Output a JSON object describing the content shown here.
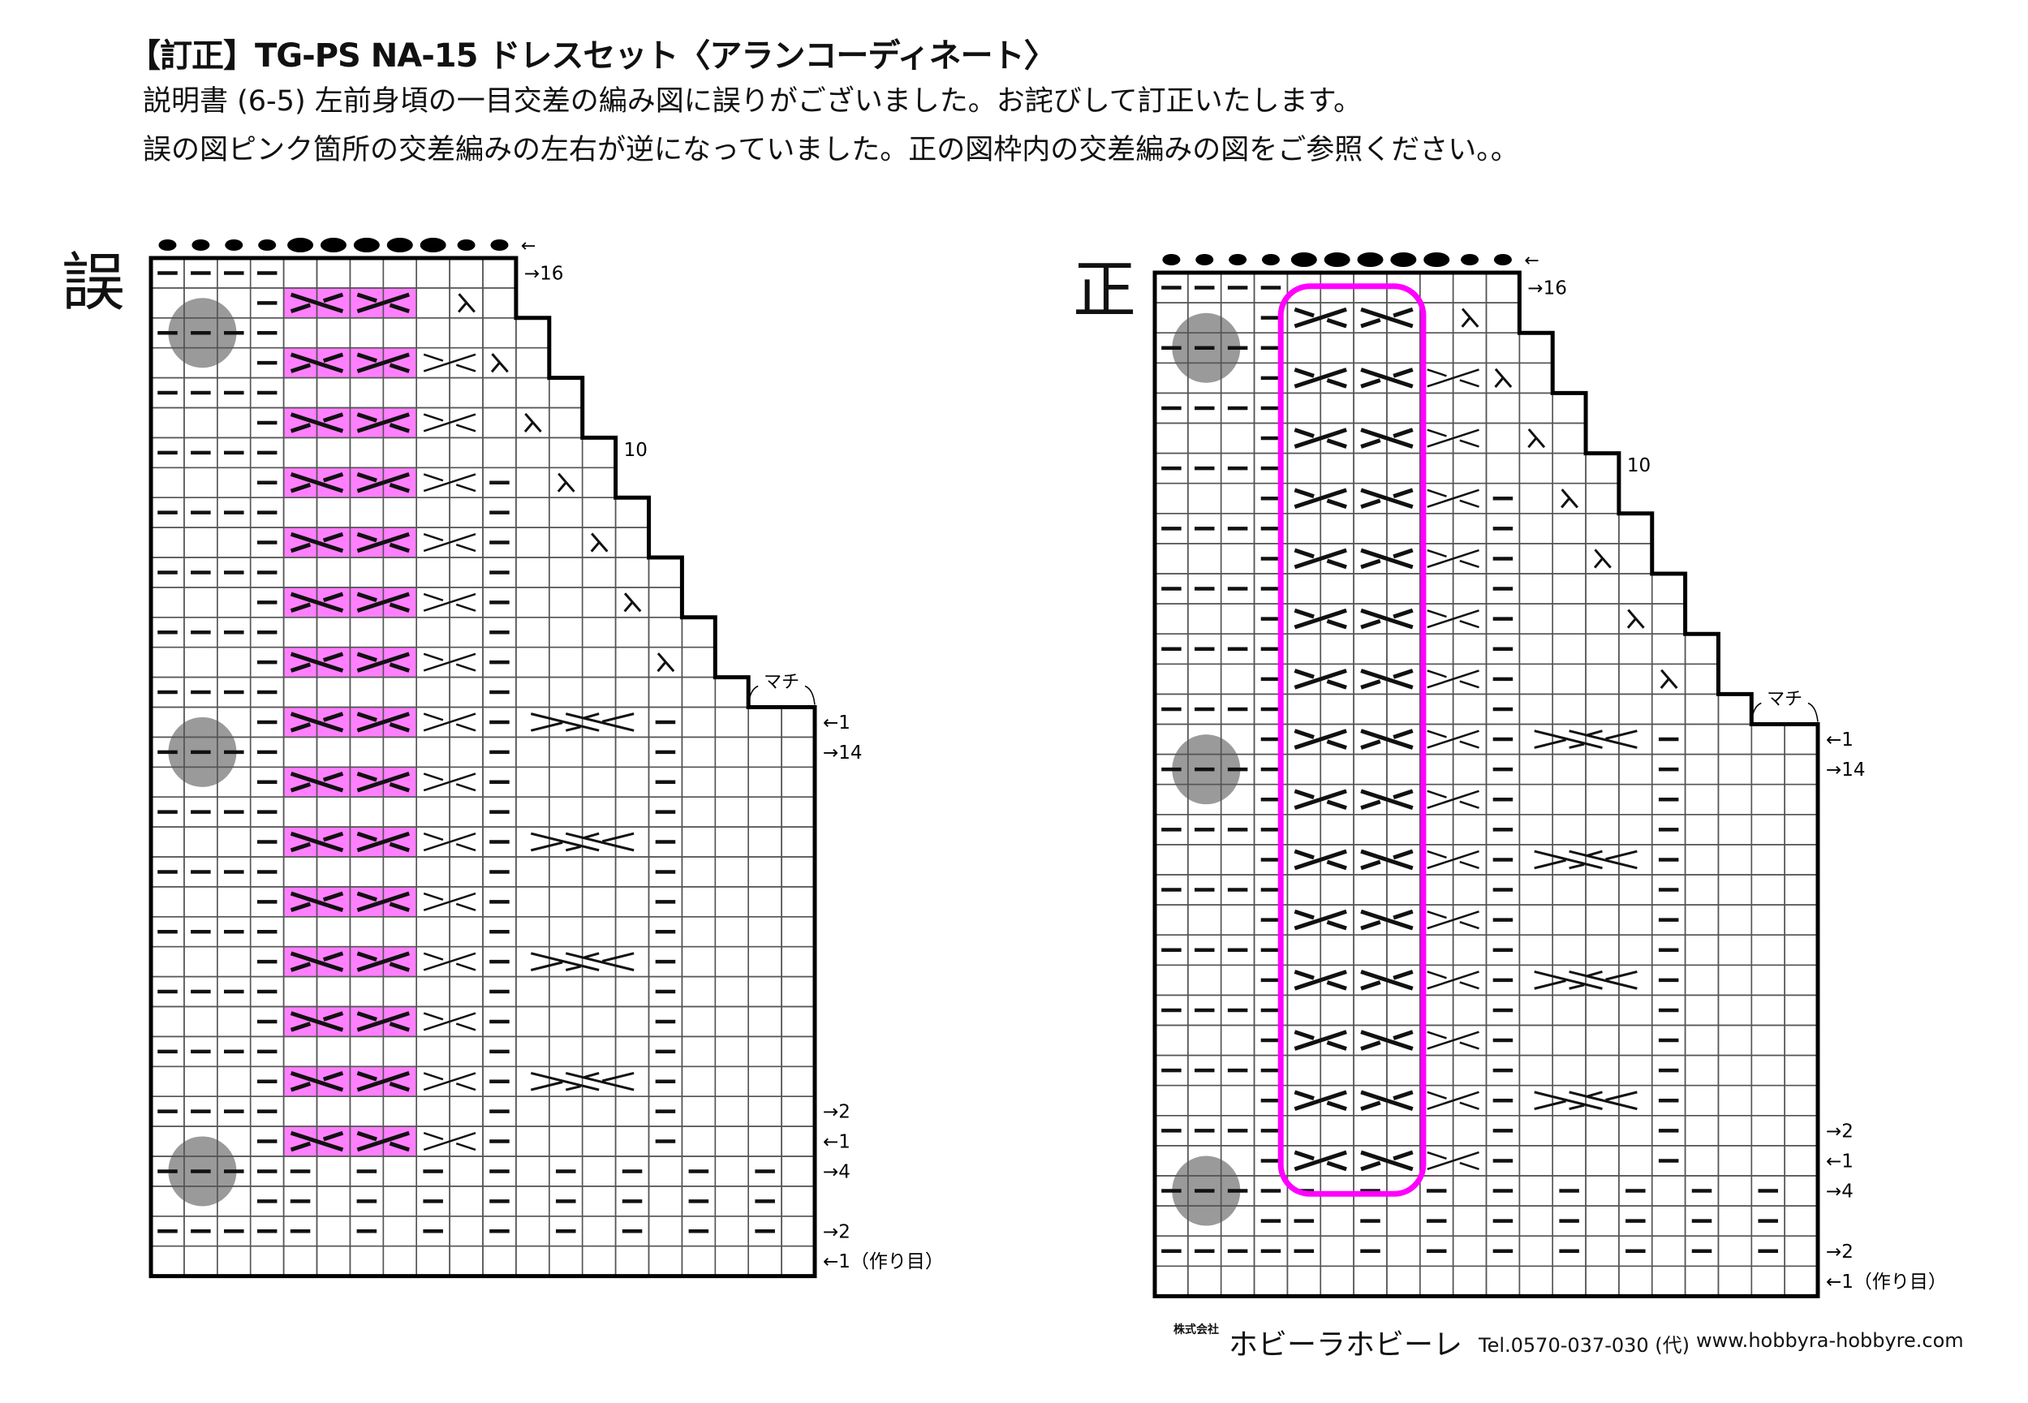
{
  "header": {
    "title": "【訂正】TG-PS NA-15 ドレスセット〈アランコーディネート〉",
    "note_lines": [
      "説明書 (6-5) 左前身頃の一目交差の編み図に誤りがございました。お詫びして訂正いたします。",
      "誤の図ピンク箇所の交差編みの左右が逆になっていました。正の図枠内の交差編みの図をご参照ください。。"
    ]
  },
  "colors": {
    "highlight_pink": "#ff80ff",
    "frame_magenta": "#ff00ff",
    "marker_grey": "#9a9a9a",
    "grid": "#555555",
    "ink": "#111111"
  },
  "symbol_legend": {
    "-": "purl",
    ".": "knit",
    "k": "decrease",
    "a": "2-stitch cross (long stroke \\)",
    "b": "2-stitch cross (long stroke /)",
    "t": "1-stitch cross",
    "c": "4-stitch cross",
    "+": "continuation of cross",
    "#": "outside chart"
  },
  "charts": [
    {
      "id": "wrong",
      "label": "誤",
      "top_dots": "sssslllllss",
      "top_arrow": "←",
      "highlight": "pink",
      "markers_rows": [
        2,
        16,
        30
      ],
      "gusset_label": "マチ",
      "row_labels": [
        {
          "row": 0,
          "text": "→16"
        },
        {
          "row": 6,
          "text": "10"
        },
        {
          "row": 15,
          "text": "←1"
        },
        {
          "row": 16,
          "text": "→14"
        },
        {
          "row": 28,
          "text": "→2"
        },
        {
          "row": 29,
          "text": "←1"
        },
        {
          "row": 30,
          "text": "→4"
        },
        {
          "row": 32,
          "text": "→2"
        },
        {
          "row": 33,
          "text": "←1（作り目）"
        }
      ],
      "rows": [
        "----.......#########",
        "...-a+b+.k.#########",
        "----........########",
        "...-a+b+t+k.########",
        "----.........#######",
        "...-a+b+t+.k.#######",
        "----..........######",
        "...-a+b+t+-.k.######",
        "----......-....#####",
        "...-a+b+t+-..k.#####",
        "----......-.....####",
        "...-a+b+t+-...k.####",
        "----......-......###",
        "...-a+b+t+-....k.###",
        "----......-.......##",
        "...-a+b+t+-c+++-....",
        "----......-....-....",
        "...-a+b+t+-....-....",
        "----......-....-....",
        "...-a+b+t+-c+++-....",
        "----......-....-....",
        "...-a+b+t+-....-....",
        "----......-....-....",
        "...-a+b+t+-c+++-....",
        "----......-....-....",
        "...-a+b+t+-....-....",
        "----......-....-....",
        "...-a+b+t+-c+++-....",
        "----......-....-....",
        "...-a+b+t+-....-....",
        "-----.-.-.-.-.-.-.-.",
        "...--.-.-.-.-.-.-.-.",
        "-----.-.-.-.-.-.-.-.",
        "...................."
      ]
    },
    {
      "id": "correct",
      "label": "正",
      "top_dots": "sssslllllss",
      "top_arrow": "←",
      "highlight": "frame",
      "markers_rows": [
        2,
        16,
        30
      ],
      "gusset_label": "マチ",
      "row_labels": [
        {
          "row": 0,
          "text": "→16"
        },
        {
          "row": 6,
          "text": "10"
        },
        {
          "row": 15,
          "text": "←1"
        },
        {
          "row": 16,
          "text": "→14"
        },
        {
          "row": 28,
          "text": "→2"
        },
        {
          "row": 29,
          "text": "←1"
        },
        {
          "row": 30,
          "text": "→4"
        },
        {
          "row": 32,
          "text": "→2"
        },
        {
          "row": 33,
          "text": "←1（作り目）"
        }
      ],
      "rows": [
        "----.......#########",
        "...-b+a+.k.#########",
        "----........########",
        "...-b+a+t+k.########",
        "----.........#######",
        "...-b+a+t+.k.#######",
        "----..........######",
        "...-b+a+t+-.k.######",
        "----......-....#####",
        "...-b+a+t+-..k.#####",
        "----......-.....####",
        "...-b+a+t+-...k.####",
        "----......-......###",
        "...-b+a+t+-....k.###",
        "----......-.......##",
        "...-b+a+t+-c+++-....",
        "----......-....-....",
        "...-b+a+t+-....-....",
        "----......-....-....",
        "...-b+a+t+-c+++-....",
        "----......-....-....",
        "...-b+a+t+-....-....",
        "----......-....-....",
        "...-b+a+t+-c+++-....",
        "----......-....-....",
        "...-b+a+t+-....-....",
        "----......-....-....",
        "...-b+a+t+-c+++-....",
        "----......-....-....",
        "...-b+a+t+-....-....",
        "-----.-.-.-.-.-.-.-.",
        "...--.-.-.-.-.-.-.-.",
        "-----.-.-.-.-.-.-.-.",
        "...................."
      ]
    }
  ],
  "footer": {
    "company_type": "株式会社",
    "company": "ホビーラホビーレ",
    "tel": "Tel.0570-037-030 (代)",
    "url": "www.hobbyra-hobbyre.com"
  }
}
